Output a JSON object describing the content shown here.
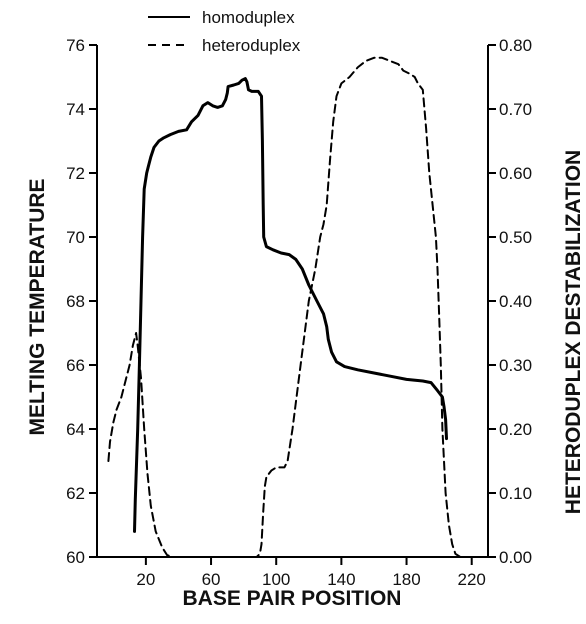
{
  "chart_data": {
    "type": "line",
    "title": "",
    "xlabel": "BASE PAIR POSITION",
    "ylabel": "MELTING TEMPERATURE",
    "y2label": "HETERODUPLEX DESTABILIZATION",
    "xlim": [
      -10,
      230
    ],
    "ylim": [
      60,
      76
    ],
    "y2lim": [
      0,
      0.8
    ],
    "x_ticks": [
      20,
      60,
      100,
      140,
      180,
      220
    ],
    "y_ticks": [
      60,
      62,
      64,
      66,
      68,
      70,
      72,
      74,
      76
    ],
    "y2_ticks": [
      "0.00",
      "0.10",
      "0.20",
      "0.30",
      "0.40",
      "0.50",
      "0.60",
      "0.70",
      "0.80"
    ],
    "grid": false,
    "legend": "top-center",
    "series": [
      {
        "name": "homoduplex",
        "axis": "left",
        "style": "solid",
        "points": [
          [
            13,
            60.8
          ],
          [
            13.5,
            61.8
          ],
          [
            15,
            64
          ],
          [
            16,
            66
          ],
          [
            17,
            68
          ],
          [
            18,
            70
          ],
          [
            19,
            71.5
          ],
          [
            20.5,
            72
          ],
          [
            21.5,
            72.2
          ],
          [
            23,
            72.5
          ],
          [
            25,
            72.8
          ],
          [
            28,
            73
          ],
          [
            31,
            73.1
          ],
          [
            35,
            73.2
          ],
          [
            40,
            73.3
          ],
          [
            45,
            73.35
          ],
          [
            48,
            73.6
          ],
          [
            52,
            73.8
          ],
          [
            55,
            74.1
          ],
          [
            58,
            74.2
          ],
          [
            61,
            74.1
          ],
          [
            64,
            74.05
          ],
          [
            67,
            74.1
          ],
          [
            69,
            74.3
          ],
          [
            70,
            74.5
          ],
          [
            70.5,
            74.7
          ],
          [
            74,
            74.75
          ],
          [
            77,
            74.8
          ],
          [
            79,
            74.9
          ],
          [
            81,
            74.95
          ],
          [
            82,
            74.85
          ],
          [
            83,
            74.6
          ],
          [
            85,
            74.55
          ],
          [
            89,
            74.55
          ],
          [
            91,
            74.4
          ],
          [
            91.5,
            73
          ],
          [
            92,
            71
          ],
          [
            92.3,
            70
          ],
          [
            94,
            69.7
          ],
          [
            98,
            69.6
          ],
          [
            103,
            69.5
          ],
          [
            108,
            69.45
          ],
          [
            112,
            69.3
          ],
          [
            116,
            69
          ],
          [
            120,
            68.5
          ],
          [
            125,
            68
          ],
          [
            129,
            67.6
          ],
          [
            131,
            67.2
          ],
          [
            132,
            66.8
          ],
          [
            134,
            66.4
          ],
          [
            137,
            66.1
          ],
          [
            142,
            65.95
          ],
          [
            150,
            65.85
          ],
          [
            160,
            65.75
          ],
          [
            170,
            65.65
          ],
          [
            180,
            65.55
          ],
          [
            190,
            65.5
          ],
          [
            195,
            65.45
          ],
          [
            199,
            65.2
          ],
          [
            202,
            65
          ],
          [
            203,
            64.7
          ],
          [
            204,
            64.3
          ],
          [
            204.5,
            63.7
          ]
        ]
      },
      {
        "name": "heteroduplex",
        "axis": "right",
        "style": "dashed",
        "points": [
          [
            -3,
            0.15
          ],
          [
            -2,
            0.18
          ],
          [
            0,
            0.21
          ],
          [
            2,
            0.23
          ],
          [
            5,
            0.25
          ],
          [
            8,
            0.28
          ],
          [
            10,
            0.3
          ],
          [
            12,
            0.33
          ],
          [
            14,
            0.35
          ],
          [
            15,
            0.33
          ],
          [
            17,
            0.28
          ],
          [
            19,
            0.2
          ],
          [
            21,
            0.13
          ],
          [
            23,
            0.08
          ],
          [
            26,
            0.04
          ],
          [
            30,
            0.015
          ],
          [
            33,
            0.003
          ],
          [
            36,
            0
          ],
          [
            88,
            0
          ],
          [
            90,
            0.005
          ],
          [
            91,
            0.02
          ],
          [
            92,
            0.07
          ],
          [
            93,
            0.11
          ],
          [
            94,
            0.125
          ],
          [
            97,
            0.135
          ],
          [
            100,
            0.14
          ],
          [
            105,
            0.14
          ],
          [
            107,
            0.15
          ],
          [
            110,
            0.2
          ],
          [
            115,
            0.3
          ],
          [
            120,
            0.4
          ],
          [
            124,
            0.45
          ],
          [
            127,
            0.5
          ],
          [
            129,
            0.52
          ],
          [
            131,
            0.55
          ],
          [
            133,
            0.62
          ],
          [
            135,
            0.68
          ],
          [
            137,
            0.72
          ],
          [
            140,
            0.74
          ],
          [
            145,
            0.75
          ],
          [
            150,
            0.765
          ],
          [
            155,
            0.775
          ],
          [
            160,
            0.78
          ],
          [
            165,
            0.78
          ],
          [
            170,
            0.775
          ],
          [
            175,
            0.77
          ],
          [
            178,
            0.76
          ],
          [
            182,
            0.755
          ],
          [
            185,
            0.75
          ],
          [
            187,
            0.74
          ],
          [
            190,
            0.73
          ],
          [
            192,
            0.67
          ],
          [
            194,
            0.6
          ],
          [
            196,
            0.55
          ],
          [
            198,
            0.5
          ],
          [
            199,
            0.45
          ],
          [
            200,
            0.38
          ],
          [
            201,
            0.3
          ],
          [
            202,
            0.2
          ],
          [
            203,
            0.15
          ],
          [
            204,
            0.1
          ],
          [
            206,
            0.05
          ],
          [
            208,
            0.02
          ],
          [
            210,
            0.005
          ],
          [
            213,
            0
          ]
        ]
      }
    ]
  }
}
